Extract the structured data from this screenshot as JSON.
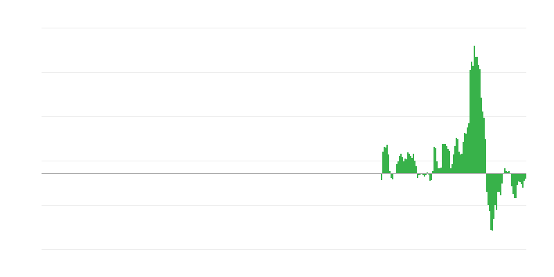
{
  "chart_data": {
    "type": "bar",
    "title": "",
    "xlabel": "",
    "ylabel": "",
    "ylim": [
      -110,
      210
    ],
    "gridlines": [
      -110,
      -46,
      18,
      82,
      146,
      210
    ],
    "grid": true,
    "legend": "none",
    "colors": {
      "bar": "#38b24a",
      "grid": "#ebebeb",
      "zero_line": "#aaaaaa"
    },
    "values": [
      -10,
      31,
      38,
      37,
      41,
      27,
      3,
      -7,
      -9,
      -1,
      -1,
      13,
      17,
      25,
      28,
      23,
      17,
      21,
      20,
      30,
      28,
      25,
      22,
      28,
      18,
      10,
      -7,
      -3,
      -2,
      -1,
      -3,
      -5,
      -3,
      1,
      -2,
      -11,
      -10,
      3,
      38,
      36,
      17,
      7,
      7,
      8,
      42,
      42,
      42,
      39,
      35,
      32,
      7,
      13,
      27,
      39,
      51,
      49,
      31,
      27,
      28,
      45,
      58,
      57,
      66,
      72,
      149,
      161,
      155,
      184,
      168,
      168,
      156,
      150,
      109,
      89,
      80,
      49,
      -27,
      -46,
      -55,
      -82,
      -83,
      -66,
      -46,
      -53,
      -27,
      -27,
      -32,
      -15,
      -1,
      7,
      3,
      2,
      3,
      -1,
      -19,
      -30,
      -36,
      -36,
      -17,
      -12,
      -13,
      -16,
      -21,
      -11,
      -8
    ]
  }
}
